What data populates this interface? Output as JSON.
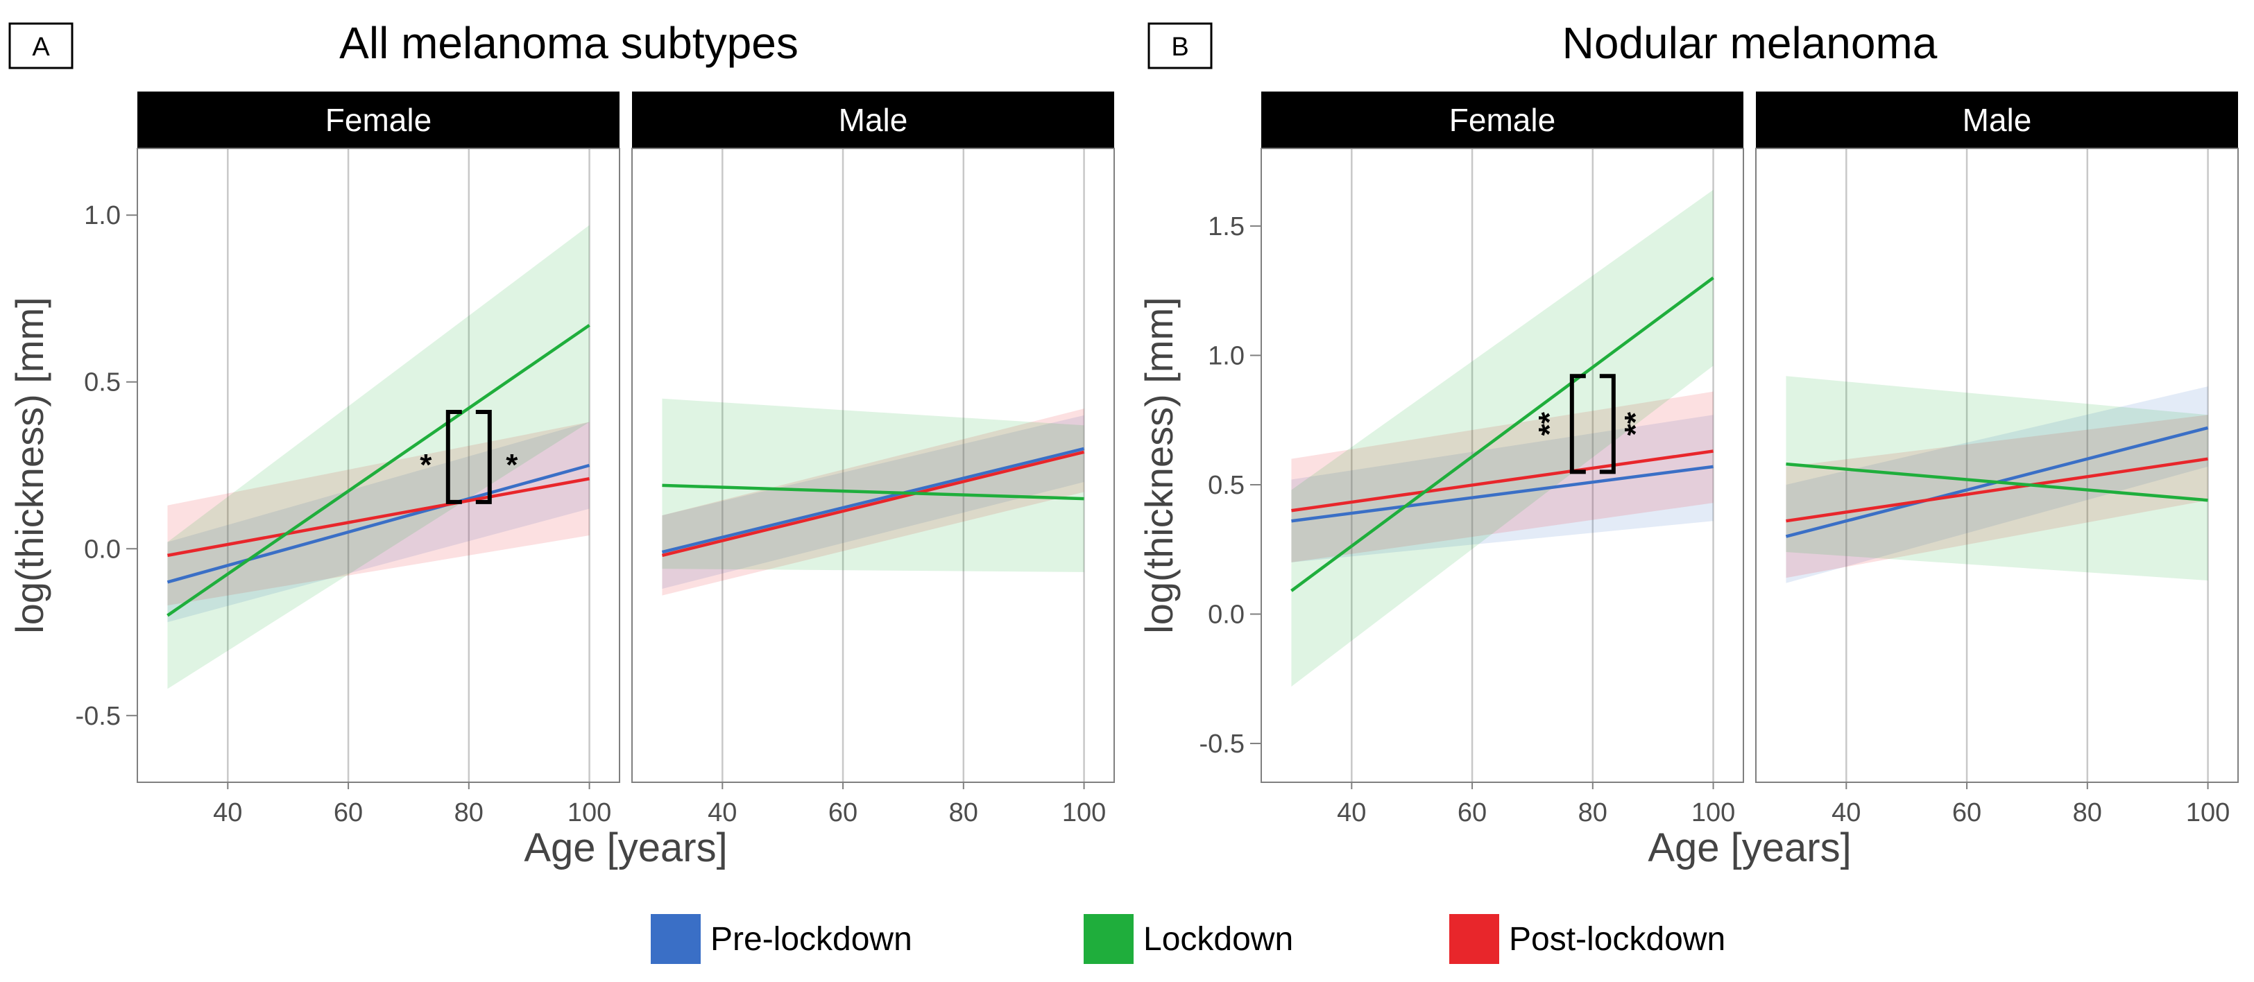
{
  "colors": {
    "pre": "#3a6fc6",
    "lockdown": "#1fae3c",
    "post": "#e8262b",
    "strip_bg": "#000000",
    "strip_text": "#ffffff",
    "grid": "#c8c8c8",
    "frame": "#7f7f7f",
    "tick_text": "#4d4d4d"
  },
  "legend": {
    "items": [
      {
        "key": "pre",
        "label": "Pre-lockdown"
      },
      {
        "key": "lockdown",
        "label": "Lockdown"
      },
      {
        "key": "post",
        "label": "Post-lockdown"
      }
    ]
  },
  "chart_data": [
    {
      "type": "line",
      "panel_tag": "A",
      "title": "All melanoma subtypes",
      "xlabel": "Age [years]",
      "ylabel": "log(thickness) [mm]",
      "xlim": [
        25,
        105
      ],
      "ylim": [
        -0.7,
        1.2
      ],
      "xticks": [
        40,
        60,
        80,
        100
      ],
      "yticks": [
        -0.5,
        0.0,
        0.5,
        1.0
      ],
      "ytick_labels": [
        "-0.5",
        "0.0",
        "0.5",
        "1.0"
      ],
      "grid": true,
      "facets": [
        {
          "label": "Female",
          "series": [
            {
              "key": "pre",
              "x": [
                30,
                100
              ],
              "y": [
                -0.1,
                0.25
              ],
              "ci_low": [
                -0.22,
                0.12
              ],
              "ci_high": [
                0.02,
                0.38
              ]
            },
            {
              "key": "post",
              "x": [
                30,
                100
              ],
              "y": [
                -0.02,
                0.21
              ],
              "ci_low": [
                -0.17,
                0.04
              ],
              "ci_high": [
                0.13,
                0.38
              ]
            },
            {
              "key": "lockdown",
              "x": [
                30,
                100
              ],
              "y": [
                -0.2,
                0.67
              ],
              "ci_low": [
                -0.42,
                0.38
              ],
              "ci_high": [
                0.02,
                0.97
              ]
            }
          ],
          "annotations": [
            {
              "text": "*",
              "bracket_x": 80,
              "y_top": 0.41,
              "y_bottom": 0.14,
              "marker": "left"
            },
            {
              "text": "*",
              "bracket_x": 80,
              "y_top": 0.41,
              "y_bottom": 0.14,
              "marker": "right"
            }
          ]
        },
        {
          "label": "Male",
          "series": [
            {
              "key": "pre",
              "x": [
                30,
                100
              ],
              "y": [
                -0.01,
                0.3
              ],
              "ci_low": [
                -0.12,
                0.2
              ],
              "ci_high": [
                0.1,
                0.4
              ]
            },
            {
              "key": "post",
              "x": [
                30,
                100
              ],
              "y": [
                -0.02,
                0.29
              ],
              "ci_low": [
                -0.14,
                0.17
              ],
              "ci_high": [
                0.1,
                0.42
              ]
            },
            {
              "key": "lockdown",
              "x": [
                30,
                100
              ],
              "y": [
                0.19,
                0.15
              ],
              "ci_low": [
                -0.06,
                -0.07
              ],
              "ci_high": [
                0.45,
                0.37
              ]
            }
          ],
          "annotations": []
        }
      ]
    },
    {
      "type": "line",
      "panel_tag": "B",
      "title": "Nodular melanoma",
      "xlabel": "Age [years]",
      "ylabel": "log(thickness) [mm]",
      "xlim": [
        25,
        105
      ],
      "ylim": [
        -0.65,
        1.8
      ],
      "xticks": [
        40,
        60,
        80,
        100
      ],
      "yticks": [
        -0.5,
        0.0,
        0.5,
        1.0,
        1.5
      ],
      "ytick_labels": [
        "-0.5",
        "0.0",
        "0.5",
        "1.0",
        "1.5"
      ],
      "grid": true,
      "facets": [
        {
          "label": "Female",
          "series": [
            {
              "key": "pre",
              "x": [
                30,
                100
              ],
              "y": [
                0.36,
                0.57
              ],
              "ci_low": [
                0.2,
                0.36
              ],
              "ci_high": [
                0.52,
                0.77
              ]
            },
            {
              "key": "post",
              "x": [
                30,
                100
              ],
              "y": [
                0.4,
                0.63
              ],
              "ci_low": [
                0.2,
                0.43
              ],
              "ci_high": [
                0.6,
                0.86
              ]
            },
            {
              "key": "lockdown",
              "x": [
                30,
                100
              ],
              "y": [
                0.09,
                1.3
              ],
              "ci_low": [
                -0.28,
                0.96
              ],
              "ci_high": [
                0.48,
                1.64
              ]
            }
          ],
          "annotations": [
            {
              "text": "**",
              "bracket_x": 80,
              "y_top": 0.92,
              "y_bottom": 0.55,
              "marker": "left"
            },
            {
              "text": "**",
              "bracket_x": 80,
              "y_top": 0.92,
              "y_bottom": 0.55,
              "marker": "right"
            }
          ]
        },
        {
          "label": "Male",
          "series": [
            {
              "key": "pre",
              "x": [
                30,
                100
              ],
              "y": [
                0.3,
                0.72
              ],
              "ci_low": [
                0.12,
                0.57
              ],
              "ci_high": [
                0.5,
                0.88
              ]
            },
            {
              "key": "post",
              "x": [
                30,
                100
              ],
              "y": [
                0.36,
                0.6
              ],
              "ci_low": [
                0.14,
                0.44
              ],
              "ci_high": [
                0.57,
                0.77
              ]
            },
            {
              "key": "lockdown",
              "x": [
                30,
                100
              ],
              "y": [
                0.58,
                0.44
              ],
              "ci_low": [
                0.24,
                0.13
              ],
              "ci_high": [
                0.92,
                0.77
              ]
            }
          ],
          "annotations": []
        }
      ]
    }
  ]
}
